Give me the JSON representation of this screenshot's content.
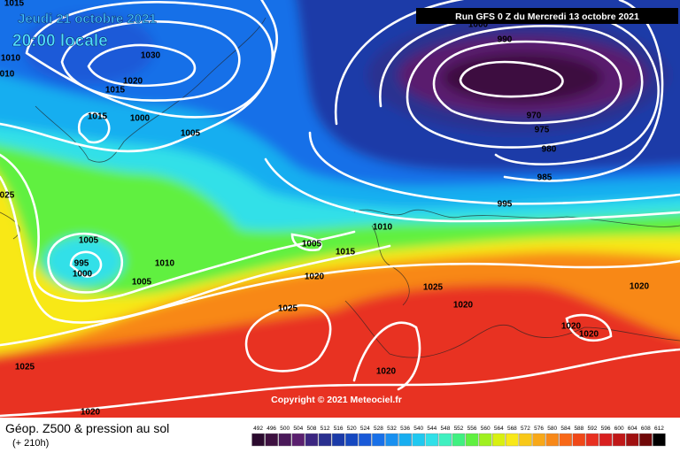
{
  "header": {
    "date": "Jeudi 21 octobre 2021",
    "time": "20:00 locale",
    "run": "Run GFS 0 Z du Mercredi 13 octobre 2021"
  },
  "copyright": "Copyright © 2021 Meteociel.fr",
  "footer": {
    "caption": "Géop. Z500 & pression au sol",
    "lead": "(+ 210h)"
  },
  "scale": {
    "labels": [
      492,
      496,
      500,
      504,
      508,
      512,
      516,
      520,
      524,
      528,
      532,
      536,
      540,
      544,
      548,
      552,
      556,
      560,
      564,
      568,
      572,
      576,
      580,
      584,
      588,
      592,
      596,
      600,
      604,
      608,
      612
    ],
    "colors": [
      "#2b0a2e",
      "#3d1040",
      "#4b1a5a",
      "#5a1f6e",
      "#3b2580",
      "#2a3090",
      "#1a3aa8",
      "#1548c0",
      "#1a5ad8",
      "#1870e8",
      "#1890f0",
      "#18aef0",
      "#20c8f0",
      "#30e0e8",
      "#40f0c0",
      "#40f080",
      "#60f040",
      "#a0f020",
      "#d8f010",
      "#f8e818",
      "#f8c818",
      "#f8a818",
      "#f88818",
      "#f86818",
      "#f04818",
      "#e83020",
      "#d82020",
      "#c01818",
      "#a01010",
      "#700808",
      "#000000"
    ]
  },
  "isobar_labels": [
    "1015",
    "1010",
    "010",
    "1030",
    "1020",
    "1015",
    "1015",
    "1000",
    "1005",
    "025",
    "1005",
    "995",
    "1000",
    "1010",
    "1005",
    "1005",
    "1010",
    "1015",
    "1020",
    "1025",
    "1025",
    "1020",
    "1020",
    "1020",
    "1020",
    "1025",
    "1020",
    "1020",
    "1000",
    "990",
    "970",
    "975",
    "980",
    "985",
    "995"
  ]
}
